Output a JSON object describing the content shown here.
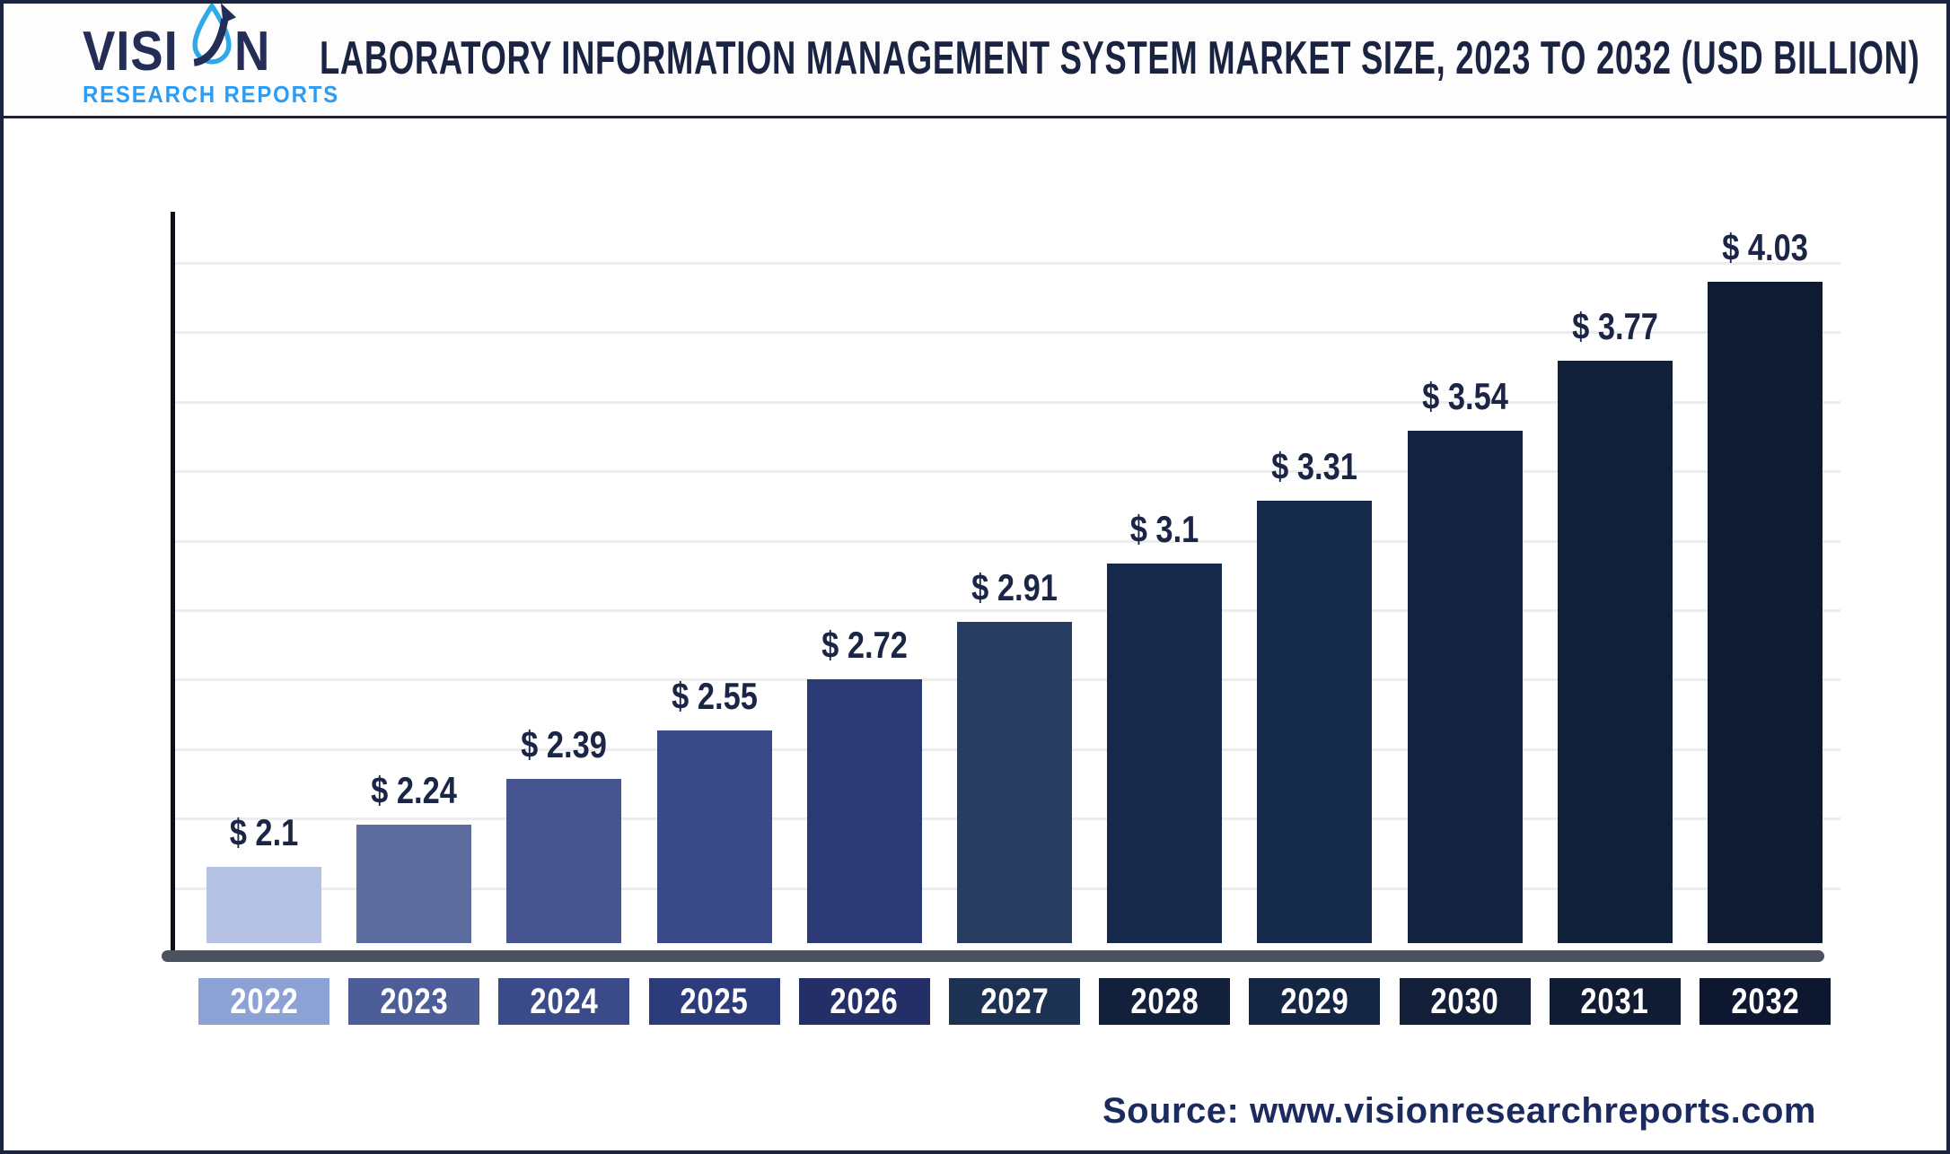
{
  "header": {
    "logo": {
      "brand_left": "VISI",
      "brand_right": "N",
      "tagline": "RESEARCH REPORTS"
    },
    "title": "LABORATORY INFORMATION MANAGEMENT SYSTEM MARKET SIZE, 2023 TO 2032 (USD BILLION)"
  },
  "chart_data": {
    "type": "bar",
    "title": "Laboratory Information Management System Market Size, 2023 to 2032 (USD Billion)",
    "unit": "USD Billion",
    "categories": [
      "2022",
      "2023",
      "2024",
      "2025",
      "2026",
      "2027",
      "2028",
      "2029",
      "2030",
      "2031",
      "2032"
    ],
    "values": [
      2.1,
      2.24,
      2.39,
      2.55,
      2.72,
      2.91,
      3.1,
      3.31,
      3.54,
      3.77,
      4.03
    ],
    "value_labels": [
      "$ 2.1",
      "$ 2.24",
      "$ 2.39",
      "$ 2.55",
      "$ 2.72",
      "$ 2.91",
      "$ 3.1",
      "$ 3.31",
      "$ 3.54",
      "$ 3.77",
      "$ 4.03"
    ],
    "bar_colors": [
      "#b6c2e3",
      "#5c6c9f",
      "#47558f",
      "#3a4a88",
      "#2c3a74",
      "#293d62",
      "#16294a",
      "#15294a",
      "#142440",
      "#112039",
      "#0e1b33"
    ],
    "year_box_colors": [
      "#8ca2d5",
      "#4d5d97",
      "#3b4a88",
      "#2c3c7b",
      "#232f66",
      "#1d3152",
      "#13203c",
      "#142643",
      "#131f39",
      "#101c34",
      "#0d1830"
    ],
    "value_label_color": "#1b2545",
    "ylim": [
      1.85,
      4.3
    ],
    "gridline_count": 10,
    "grid_on": true,
    "legend": "none",
    "xlabel": "",
    "ylabel": ""
  },
  "footer": {
    "source": "Source: www.visionresearchreports.com"
  },
  "colors": {
    "border": "#1a2342",
    "title": "#1a2342",
    "tagline_blue": "#2d9cf4",
    "logo_navy": "#232d56",
    "axis_line": "#4c515e",
    "y_axis": "#0d0d15",
    "gridline": "#ededed"
  }
}
